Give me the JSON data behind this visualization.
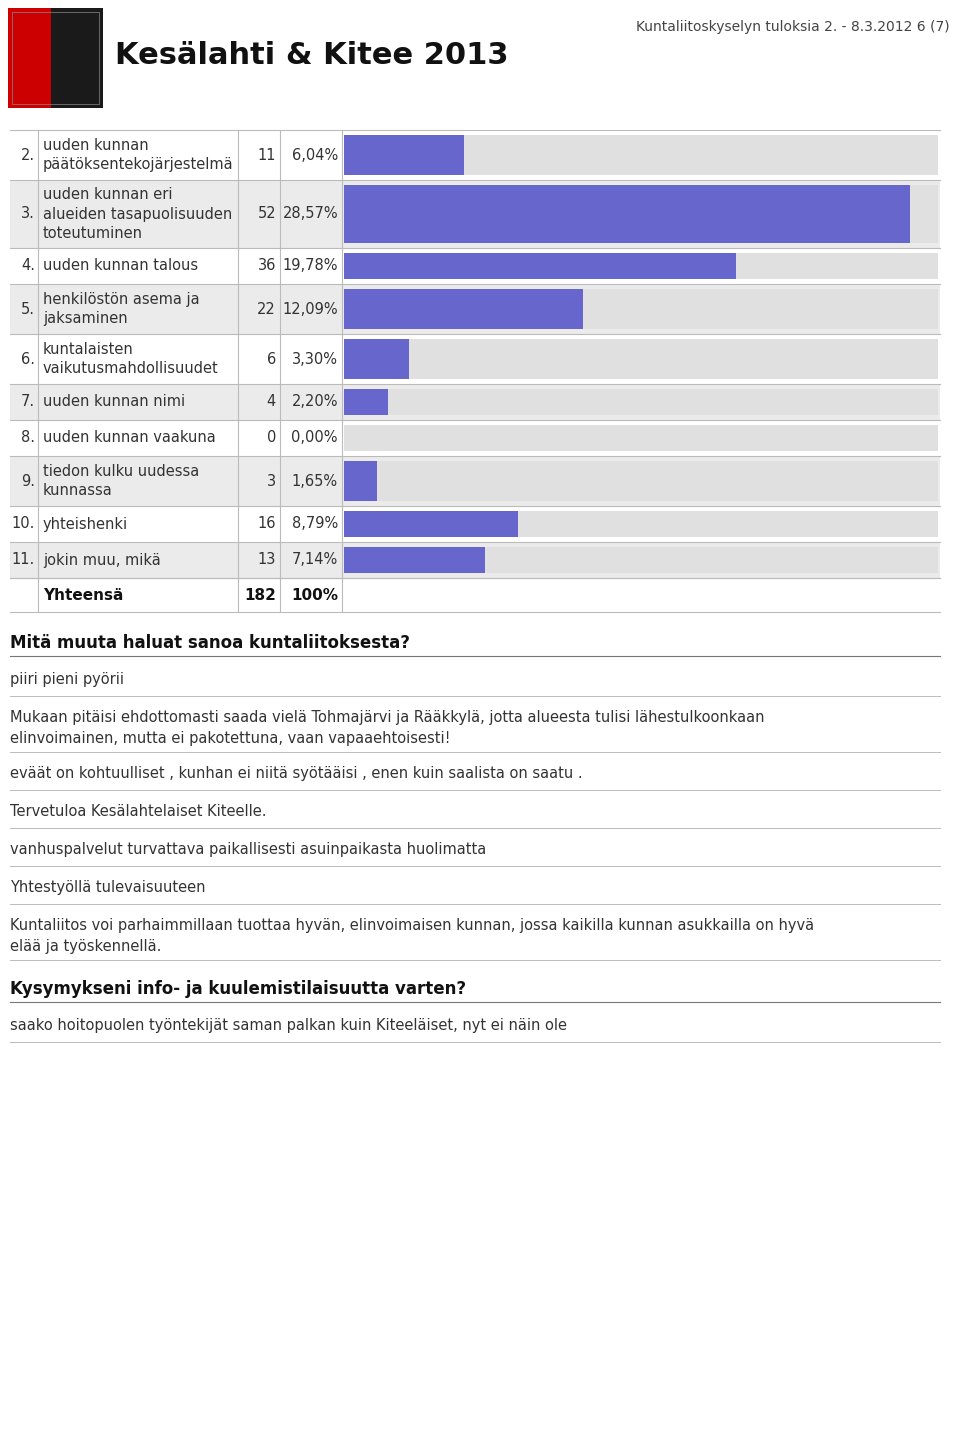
{
  "header_title": "Kesälahti & Kitee 2013",
  "header_right": "Kuntaliitoskyselyn tuloksia 2. - 8.3.2012 6 (7)",
  "rows": [
    {
      "num": "2.",
      "label": "uuden kunnan\npäätöksentekojärjestelmä",
      "count": 11,
      "pct": "6,04%",
      "value": 6.04
    },
    {
      "num": "3.",
      "label": "uuden kunnan eri\nalueiden tasapuolisuuden\ntoteutuminen",
      "count": 52,
      "pct": "28,57%",
      "value": 28.57
    },
    {
      "num": "4.",
      "label": "uuden kunnan talous",
      "count": 36,
      "pct": "19,78%",
      "value": 19.78
    },
    {
      "num": "5.",
      "label": "henkilöstön asema ja\njaksaminen",
      "count": 22,
      "pct": "12,09%",
      "value": 12.09
    },
    {
      "num": "6.",
      "label": "kuntalaisten\nvaikutusmahdollisuudet",
      "count": 6,
      "pct": "3,30%",
      "value": 3.3
    },
    {
      "num": "7.",
      "label": "uuden kunnan nimi",
      "count": 4,
      "pct": "2,20%",
      "value": 2.2
    },
    {
      "num": "8.",
      "label": "uuden kunnan vaakuna",
      "count": 0,
      "pct": "0,00%",
      "value": 0.0
    },
    {
      "num": "9.",
      "label": "tiedon kulku uudessa\nkunnassa",
      "count": 3,
      "pct": "1,65%",
      "value": 1.65
    },
    {
      "num": "10.",
      "label": "yhteishenki",
      "count": 16,
      "pct": "8,79%",
      "value": 8.79
    },
    {
      "num": "11.",
      "label": "jokin muu, mikä",
      "count": 13,
      "pct": "7,14%",
      "value": 7.14
    }
  ],
  "total_label": "Yhteensä",
  "total_count": "182",
  "total_pct": "100%",
  "bar_color": "#6666cc",
  "bar_bg_color": "#e0e0e0",
  "bar_max": 30.0,
  "section_title": "Mitä muuta haluat sanoa kuntaliitoksesta?",
  "section_title2": "Kysymykseni info- ja kuulemistilaisuutta varten?",
  "text_items": [
    {
      "text": "piiri pieni pyörii",
      "lines": 1
    },
    {
      "text": "Mukaan pitäisi ehdottomasti saada vielä Tohmajärvi ja Rääkkylä, jotta alueesta tulisi lähestulkoonkaan\nelinvoimainen, mutta ei pakotettuna, vaan vapaaehtoisesti!",
      "lines": 2
    },
    {
      "text": "eväät on kohtuulliset , kunhan ei niitä syötääisi , enen kuin saalista on saatu .",
      "lines": 1
    },
    {
      "text": "Tervetuloa Kesälahtelaiset Kiteelle.",
      "lines": 1
    },
    {
      "text": "vanhuspalvelut turvattava paikallisesti asuinpaikasta huolimatta",
      "lines": 1
    },
    {
      "text": "Yhtestyöllä tulevaisuuteen",
      "lines": 1
    },
    {
      "text": "Kuntaliitos voi parhaimmillaan tuottaa hyvän, elinvoimaisen kunnan, jossa kaikilla kunnan asukkailla on hyvä\nelää ja työskennellä.",
      "lines": 2
    }
  ],
  "text_items2": [
    {
      "text": "saako hoitopuolen työntekijät saman palkan kuin Kiteeläiset, nyt ei näin ole",
      "lines": 1
    }
  ],
  "bg_color": "#ffffff",
  "table_border_color": "#bbbbbb",
  "row_bg_odd": "#ebebeb",
  "row_bg_even": "#ffffff"
}
